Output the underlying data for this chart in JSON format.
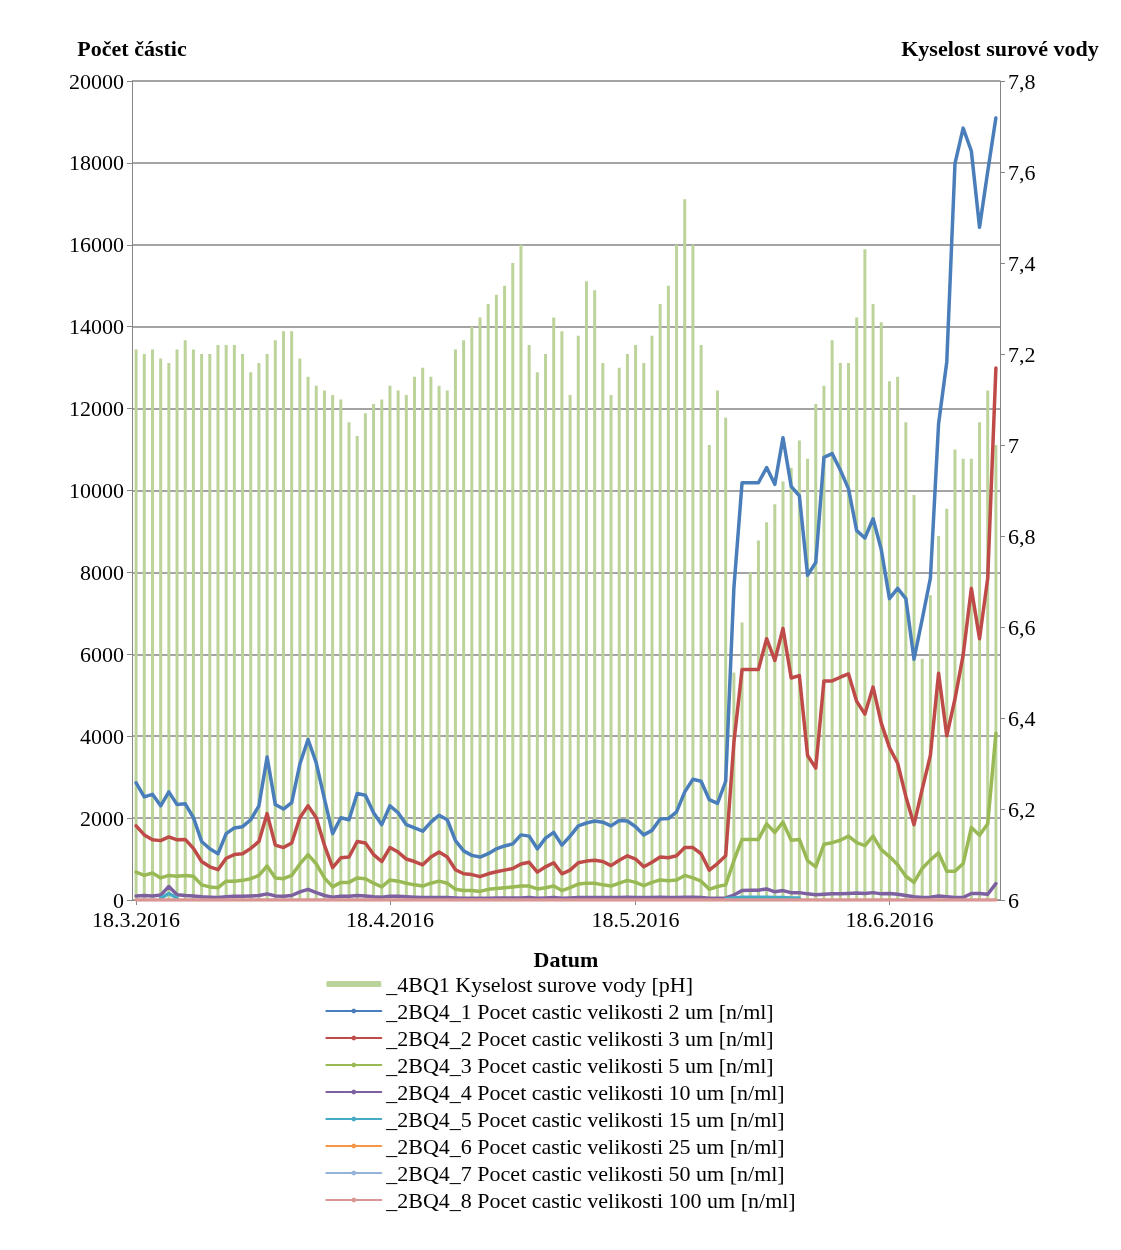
{
  "chart_data": {
    "type": "line",
    "xlabel": "Datum",
    "ylabel": "Počet částic",
    "y2label": "Kyselost surové vody",
    "x": [
      "2016-03-18",
      "2016-03-19",
      "2016-03-20",
      "2016-03-21",
      "2016-03-22",
      "2016-03-23",
      "2016-03-24",
      "2016-03-25",
      "2016-03-26",
      "2016-03-27",
      "2016-03-28",
      "2016-03-29",
      "2016-03-30",
      "2016-03-31",
      "2016-04-01",
      "2016-04-02",
      "2016-04-03",
      "2016-04-04",
      "2016-04-05",
      "2016-04-06",
      "2016-04-07",
      "2016-04-08",
      "2016-04-09",
      "2016-04-10",
      "2016-04-11",
      "2016-04-12",
      "2016-04-13",
      "2016-04-14",
      "2016-04-15",
      "2016-04-16",
      "2016-04-17",
      "2016-04-18",
      "2016-04-19",
      "2016-04-20",
      "2016-04-21",
      "2016-04-22",
      "2016-04-23",
      "2016-04-24",
      "2016-04-25",
      "2016-04-26",
      "2016-04-27",
      "2016-04-28",
      "2016-04-29",
      "2016-04-30",
      "2016-05-01",
      "2016-05-02",
      "2016-05-03",
      "2016-05-04",
      "2016-05-05",
      "2016-05-06",
      "2016-05-07",
      "2016-05-08",
      "2016-05-09",
      "2016-05-10",
      "2016-05-11",
      "2016-05-12",
      "2016-05-13",
      "2016-05-14",
      "2016-05-15",
      "2016-05-16",
      "2016-05-17",
      "2016-05-18",
      "2016-05-19",
      "2016-05-20",
      "2016-05-21",
      "2016-05-22",
      "2016-05-23",
      "2016-05-24",
      "2016-05-25",
      "2016-05-26",
      "2016-05-27",
      "2016-05-28",
      "2016-05-29",
      "2016-05-30",
      "2016-05-31",
      "2016-06-01",
      "2016-06-02",
      "2016-06-03",
      "2016-06-04",
      "2016-06-05",
      "2016-06-06",
      "2016-06-07",
      "2016-06-08",
      "2016-06-09",
      "2016-06-10",
      "2016-06-11",
      "2016-06-12",
      "2016-06-13",
      "2016-06-14",
      "2016-06-15",
      "2016-06-16",
      "2016-06-17",
      "2016-06-18",
      "2016-06-19",
      "2016-06-20",
      "2016-06-21",
      "2016-06-22",
      "2016-06-23",
      "2016-06-24",
      "2016-06-25",
      "2016-06-26",
      "2016-06-27",
      "2016-06-28",
      "2016-06-29",
      "2016-06-30",
      "2016-07-01"
    ],
    "xlim": [
      "2016-03-17T12:00",
      "2016-07-01T12:00"
    ],
    "xticks": [
      {
        "value": "2016-03-18",
        "label": "18.3.2016"
      },
      {
        "value": "2016-04-18",
        "label": "18.4.2016"
      },
      {
        "value": "2016-05-18",
        "label": "18.5.2016"
      },
      {
        "value": "2016-06-18",
        "label": "18.6.2016"
      }
    ],
    "ylim": [
      0,
      20000
    ],
    "yticks": [
      0,
      2000,
      4000,
      6000,
      8000,
      10000,
      12000,
      14000,
      16000,
      18000,
      20000
    ],
    "y2lim": [
      6,
      7.8
    ],
    "y2ticks": [
      6,
      {
        "value": 6.2,
        "label": "6,2"
      },
      {
        "value": 6.4,
        "label": "6,4"
      },
      {
        "value": 6.6,
        "label": "6,6"
      },
      {
        "value": 6.8,
        "label": "6,8"
      },
      7,
      {
        "value": 7.2,
        "label": "7,2"
      },
      {
        "value": 7.4,
        "label": "7,4"
      },
      {
        "value": 7.6,
        "label": "7,6"
      },
      {
        "value": 7.8,
        "label": "7,8"
      }
    ],
    "grid": "y",
    "legend": "bottom",
    "series": [
      {
        "name": "_4BQ1 Kyselost surove vody [pH]",
        "type": "bar",
        "axis": "y2",
        "color": "#bcd39a",
        "values": [
          7.21,
          7.2,
          7.21,
          7.19,
          7.18,
          7.21,
          7.23,
          7.21,
          7.2,
          7.2,
          7.22,
          7.22,
          7.22,
          7.2,
          7.16,
          7.18,
          7.2,
          7.23,
          7.25,
          7.25,
          7.19,
          7.15,
          7.13,
          7.12,
          7.11,
          7.1,
          7.05,
          7.02,
          7.07,
          7.09,
          7.1,
          7.13,
          7.12,
          7.11,
          7.15,
          7.17,
          7.15,
          7.13,
          7.12,
          7.21,
          7.23,
          7.26,
          7.28,
          7.31,
          7.33,
          7.35,
          7.4,
          7.44,
          7.22,
          7.16,
          7.2,
          7.28,
          7.25,
          7.11,
          7.24,
          7.36,
          7.34,
          7.18,
          7.11,
          7.17,
          7.2,
          7.22,
          7.18,
          7.24,
          7.31,
          7.35,
          7.44,
          7.54,
          7.44,
          7.22,
          7.0,
          7.12,
          7.06,
          6.5,
          6.61,
          6.72,
          6.79,
          6.83,
          6.87,
          6.92,
          6.95,
          7.01,
          6.97,
          7.09,
          7.13,
          7.23,
          7.18,
          7.18,
          7.28,
          7.43,
          7.31,
          7.27,
          7.14,
          7.15,
          7.05,
          6.89,
          6.53,
          6.67,
          6.8,
          6.86,
          6.99,
          6.97,
          6.97,
          7.05,
          7.12,
          7.0
        ]
      },
      {
        "name": "_2BQ4_1 Pocet castic velikosti 2 um [n/ml]",
        "color": "#4a7ebb",
        "values": [
          2860,
          2520,
          2580,
          2300,
          2640,
          2330,
          2350,
          2010,
          1430,
          1250,
          1130,
          1620,
          1760,
          1790,
          1960,
          2300,
          3490,
          2330,
          2220,
          2380,
          3320,
          3920,
          3350,
          2470,
          1620,
          2010,
          1960,
          2600,
          2560,
          2130,
          1840,
          2300,
          2130,
          1840,
          1760,
          1680,
          1900,
          2070,
          1960,
          1450,
          1200,
          1090,
          1050,
          1130,
          1250,
          1320,
          1370,
          1590,
          1560,
          1250,
          1510,
          1650,
          1340,
          1560,
          1810,
          1880,
          1930,
          1900,
          1810,
          1940,
          1930,
          1790,
          1590,
          1700,
          1980,
          1990,
          2150,
          2640,
          2950,
          2900,
          2450,
          2360,
          2900,
          7610,
          10190,
          10190,
          10190,
          10560,
          10150,
          11290,
          10100,
          9870,
          7930,
          8240,
          10810,
          10900,
          10500,
          10040,
          9020,
          8840,
          9310,
          8560,
          7360,
          7610,
          7360,
          5880,
          6860,
          7860,
          11630,
          13140,
          17980,
          18850,
          18290,
          16430,
          17790,
          19100
        ]
      },
      {
        "name": "_2BQ4_2 Pocet castic velikosti 3 um [n/ml]",
        "color": "#be4b48",
        "values": [
          1810,
          1590,
          1470,
          1450,
          1540,
          1470,
          1480,
          1260,
          940,
          810,
          740,
          1020,
          1110,
          1130,
          1260,
          1430,
          2110,
          1340,
          1280,
          1390,
          2010,
          2300,
          2010,
          1340,
          790,
          1030,
          1050,
          1430,
          1390,
          1110,
          940,
          1280,
          1170,
          1000,
          940,
          860,
          1050,
          1170,
          1050,
          740,
          640,
          620,
          570,
          640,
          690,
          730,
          770,
          880,
          920,
          680,
          810,
          910,
          640,
          730,
          910,
          950,
          970,
          940,
          840,
          970,
          1080,
          1000,
          810,
          920,
          1050,
          1030,
          1080,
          1280,
          1280,
          1130,
          730,
          890,
          1080,
          3840,
          5630,
          5630,
          5630,
          6380,
          5850,
          6630,
          5420,
          5480,
          3530,
          3220,
          5350,
          5350,
          5440,
          5520,
          4850,
          4540,
          5200,
          4320,
          3720,
          3340,
          2530,
          1840,
          2710,
          3530,
          5540,
          4010,
          4910,
          5980,
          7610,
          6380,
          7860,
          12990
        ]
      },
      {
        "name": "_2BQ4_3 Pocet castic velikosti 5 um [n/ml]",
        "color": "#98b954",
        "values": [
          680,
          600,
          660,
          540,
          600,
          580,
          600,
          580,
          370,
          320,
          300,
          460,
          460,
          480,
          520,
          600,
          830,
          540,
          520,
          600,
          880,
          1110,
          880,
          540,
          320,
          430,
          430,
          540,
          520,
          410,
          320,
          490,
          460,
          410,
          370,
          340,
          410,
          460,
          410,
          260,
          230,
          230,
          210,
          260,
          280,
          300,
          320,
          340,
          340,
          270,
          300,
          340,
          230,
          300,
          390,
          410,
          410,
          370,
          340,
          410,
          480,
          430,
          350,
          430,
          490,
          470,
          490,
          600,
          540,
          460,
          260,
          330,
          370,
          960,
          1480,
          1480,
          1480,
          1860,
          1650,
          1900,
          1460,
          1480,
          960,
          810,
          1360,
          1400,
          1460,
          1560,
          1400,
          1330,
          1560,
          1230,
          1060,
          860,
          580,
          430,
          770,
          980,
          1150,
          700,
          700,
          890,
          1770,
          1580,
          1860,
          4070
        ]
      },
      {
        "name": "_2BQ4_4 Pocet castic velikosti 10 um [n/ml]",
        "color": "#7d60a0",
        "values": [
          100,
          110,
          100,
          120,
          330,
          130,
          110,
          100,
          80,
          70,
          60,
          80,
          90,
          90,
          100,
          110,
          150,
          100,
          90,
          110,
          200,
          260,
          180,
          110,
          70,
          90,
          90,
          110,
          100,
          80,
          70,
          90,
          90,
          80,
          70,
          60,
          60,
          60,
          60,
          50,
          40,
          40,
          40,
          40,
          50,
          50,
          50,
          50,
          60,
          40,
          50,
          60,
          40,
          50,
          60,
          60,
          60,
          60,
          60,
          60,
          70,
          60,
          60,
          60,
          70,
          60,
          60,
          70,
          70,
          60,
          40,
          40,
          50,
          120,
          230,
          240,
          240,
          270,
          200,
          230,
          180,
          180,
          150,
          130,
          140,
          150,
          150,
          160,
          170,
          160,
          180,
          150,
          160,
          140,
          110,
          80,
          60,
          70,
          100,
          80,
          60,
          60,
          160,
          160,
          140,
          400
        ]
      },
      {
        "name": "_2BQ4_5 Pocet castic velikosti 15 um [n/ml]",
        "color": "#46aac5",
        "values": [
          null,
          null,
          null,
          40,
          160,
          50,
          null,
          null,
          null,
          null,
          null,
          null,
          null,
          null,
          null,
          null,
          null,
          null,
          null,
          null,
          null,
          null,
          null,
          null,
          null,
          null,
          null,
          null,
          null,
          null,
          null,
          null,
          null,
          null,
          null,
          null,
          null,
          null,
          null,
          null,
          null,
          null,
          null,
          null,
          null,
          null,
          null,
          null,
          null,
          null,
          null,
          null,
          null,
          null,
          null,
          null,
          null,
          null,
          null,
          null,
          null,
          null,
          null,
          null,
          null,
          null,
          null,
          null,
          null,
          null,
          null,
          null,
          30,
          50,
          70,
          70,
          70,
          70,
          60,
          60,
          50,
          50,
          null,
          null,
          null,
          null,
          null,
          null,
          null,
          null,
          null,
          null,
          null,
          null,
          null,
          null,
          null,
          null,
          null,
          null,
          null,
          null,
          null,
          null,
          null,
          null
        ]
      },
      {
        "name": "_2BQ4_6 Pocet castic velikosti 25 um [n/ml]",
        "color": "#f79646",
        "values": [
          null,
          null,
          null,
          null,
          null,
          null,
          null,
          null,
          null,
          null,
          null,
          null,
          null,
          null,
          null,
          null,
          null,
          null,
          null,
          null,
          null,
          null,
          null,
          null,
          null,
          null,
          null,
          null,
          null,
          null,
          null,
          null,
          null,
          null,
          null,
          null,
          null,
          null,
          null,
          null,
          null,
          null,
          null,
          null,
          null,
          null,
          null,
          null,
          null,
          null,
          null,
          null,
          null,
          null,
          null,
          null,
          null,
          null,
          null,
          null,
          null,
          null,
          null,
          null,
          null,
          null,
          null,
          null,
          null,
          null,
          null,
          null,
          null,
          null,
          null,
          null,
          null,
          null,
          null,
          null,
          null,
          null,
          null,
          null,
          null,
          null,
          null,
          null,
          null,
          null,
          null,
          null,
          null,
          null,
          null,
          null,
          null,
          null,
          null,
          null,
          null,
          null,
          null,
          null,
          null,
          null
        ]
      },
      {
        "name": "_2BQ4_7 Pocet castic velikosti 50 um [n/ml]",
        "color": "#95b3d7",
        "values": [
          null,
          null,
          null,
          null,
          null,
          null,
          null,
          null,
          null,
          null,
          null,
          null,
          null,
          null,
          null,
          null,
          null,
          null,
          null,
          null,
          null,
          null,
          null,
          null,
          null,
          null,
          null,
          null,
          null,
          null,
          null,
          null,
          null,
          null,
          null,
          null,
          null,
          null,
          null,
          null,
          null,
          null,
          null,
          null,
          null,
          null,
          null,
          null,
          null,
          null,
          null,
          null,
          null,
          null,
          null,
          null,
          null,
          null,
          null,
          null,
          null,
          null,
          null,
          null,
          null,
          null,
          null,
          null,
          null,
          null,
          null,
          null,
          null,
          null,
          null,
          null,
          null,
          null,
          null,
          null,
          null,
          null,
          null,
          null,
          null,
          null,
          null,
          null,
          null,
          null,
          null,
          null,
          null,
          null,
          null,
          null,
          null,
          null,
          null,
          null,
          null,
          null,
          null,
          null,
          null,
          null
        ]
      },
      {
        "name": "_2BQ4_8 Pocet castic velikosti 100 um [n/ml]",
        "color": "#d99694",
        "values": [
          0,
          0,
          0,
          0,
          0,
          0,
          0,
          0,
          0,
          0,
          0,
          0,
          0,
          0,
          0,
          0,
          0,
          0,
          0,
          0,
          0,
          0,
          0,
          0,
          0,
          0,
          0,
          0,
          0,
          0,
          0,
          0,
          0,
          0,
          0,
          0,
          0,
          0,
          0,
          0,
          0,
          0,
          0,
          0,
          0,
          0,
          0,
          0,
          0,
          0,
          0,
          0,
          0,
          0,
          0,
          0,
          0,
          0,
          0,
          0,
          0,
          0,
          0,
          0,
          0,
          0,
          0,
          0,
          0,
          0,
          0,
          0,
          0,
          0,
          0,
          0,
          0,
          0,
          0,
          0,
          0,
          0,
          0,
          0,
          0,
          0,
          0,
          0,
          0,
          0,
          0,
          0,
          0,
          0,
          0,
          0,
          0,
          0,
          0,
          0,
          0,
          0,
          0,
          0,
          0,
          0
        ]
      }
    ]
  }
}
